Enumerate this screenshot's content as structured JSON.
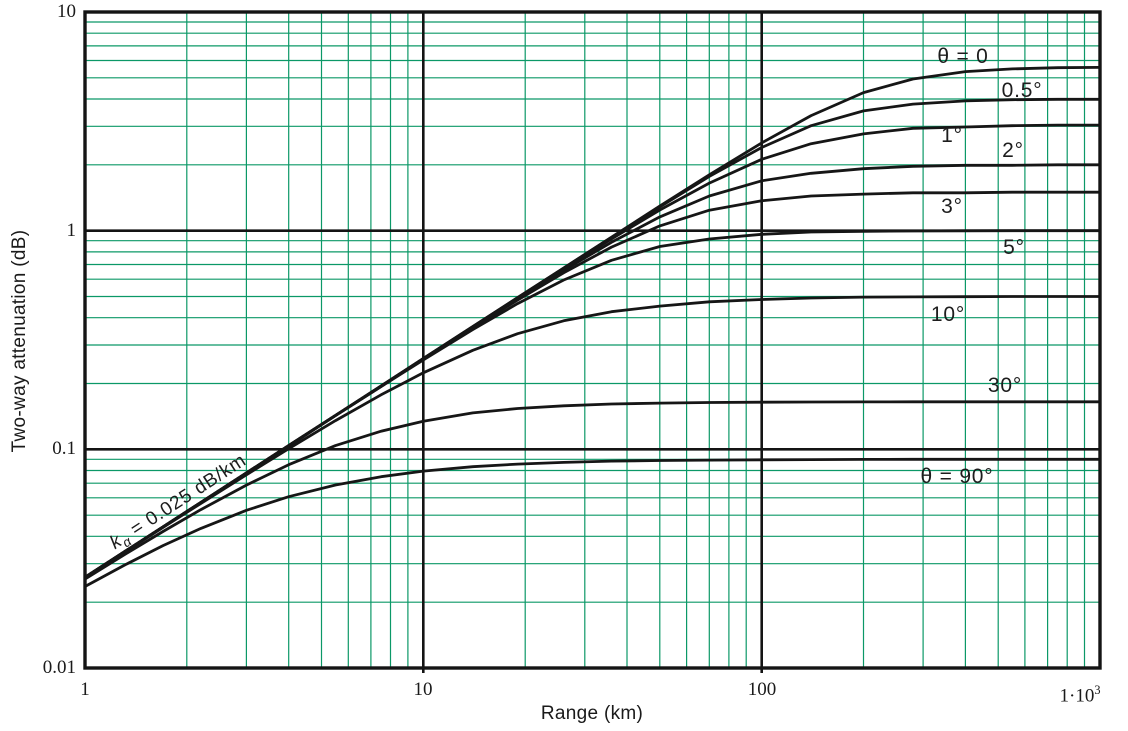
{
  "figure": {
    "bg_color": "#ffffff",
    "grid_minor_color": "#0b9867",
    "grid_major_color": "#141414",
    "frame_color": "#141414",
    "curve_color": "#161616"
  },
  "axes": {
    "x": {
      "title": "Range (km)",
      "scale": "log",
      "ticks": [
        {
          "value": 1,
          "text": "1",
          "sup": ""
        },
        {
          "value": 10,
          "text": "10",
          "sup": ""
        },
        {
          "value": 100,
          "text": "100",
          "sup": ""
        },
        {
          "value": 1000,
          "text": "1·10",
          "sup": "3"
        }
      ]
    },
    "y": {
      "title": "Two-way attenuation (dB)",
      "scale": "log",
      "ticks": [
        {
          "value": 10,
          "text": "10",
          "sup": ""
        },
        {
          "value": 1,
          "text": "1",
          "sup": ""
        },
        {
          "value": 0.1,
          "text": "0.1",
          "sup": ""
        },
        {
          "value": 0.01,
          "text": "0.01",
          "sup": ""
        }
      ]
    }
  },
  "annotation": {
    "k_var": "k",
    "k_sub": "α",
    "k_rest": " = 0.025 dB/km",
    "at": [
      1.9,
      0.057
    ],
    "angle_deg": -33
  },
  "chart_data": {
    "type": "line",
    "title": "",
    "xlabel": "Range (km)",
    "ylabel": "Two-way attenuation (dB)",
    "xscale": "log",
    "yscale": "log",
    "xlim": [
      1,
      1000
    ],
    "ylim": [
      0.01,
      10
    ],
    "grid": "log-log grid: green minor lines at 2-9 per decade, black lines at decades",
    "legend": "curve labels drawn inline at right side of plot",
    "x": [
      1,
      1.3,
      1.7,
      2.2,
      3,
      4,
      5.5,
      7.5,
      10,
      14,
      19,
      26,
      36,
      50,
      70,
      100,
      140,
      200,
      280,
      400,
      550,
      750,
      1000
    ],
    "series": [
      {
        "name": "theta-0",
        "label": "θ = 0",
        "elevation_deg": 0,
        "saturation_dB": 5.6,
        "label_at": [
          394,
          6.2
        ],
        "values": [
          0.026,
          0.0338,
          0.0442,
          0.0572,
          0.078,
          0.104,
          0.143,
          0.195,
          0.26,
          0.364,
          0.494,
          0.675,
          0.934,
          1.295,
          1.8,
          2.52,
          3.36,
          4.28,
          4.94,
          5.34,
          5.49,
          5.56,
          5.58
        ]
      },
      {
        "name": "theta-0-5",
        "label": "0.5°",
        "elevation_deg": 0.5,
        "saturation_dB": 4.0,
        "label_at": [
          590,
          4.35
        ],
        "values": [
          0.026,
          0.0338,
          0.0442,
          0.0572,
          0.078,
          0.104,
          0.143,
          0.195,
          0.26,
          0.364,
          0.493,
          0.675,
          0.932,
          1.285,
          1.77,
          2.4,
          3.02,
          3.53,
          3.79,
          3.92,
          3.97,
          3.99,
          3.99
        ]
      },
      {
        "name": "theta-1",
        "label": "1°",
        "elevation_deg": 1,
        "saturation_dB": 3.05,
        "label_at": [
          366,
          2.7
        ],
        "values": [
          0.026,
          0.0338,
          0.0442,
          0.0572,
          0.078,
          0.104,
          0.143,
          0.194,
          0.26,
          0.363,
          0.492,
          0.67,
          0.917,
          1.243,
          1.65,
          2.12,
          2.5,
          2.77,
          2.94,
          2.98,
          3.02,
          3.04,
          3.04
        ]
      },
      {
        "name": "theta-2",
        "label": "2°",
        "elevation_deg": 2,
        "saturation_dB": 2.0,
        "label_at": [
          553,
          2.32
        ],
        "values": [
          0.026,
          0.0338,
          0.0442,
          0.0571,
          0.0779,
          0.1037,
          0.1428,
          0.1944,
          0.2594,
          0.362,
          0.488,
          0.659,
          0.885,
          1.156,
          1.44,
          1.69,
          1.83,
          1.92,
          1.97,
          1.99,
          1.99,
          2.0,
          2.0
        ]
      },
      {
        "name": "theta-3",
        "label": "3°",
        "elevation_deg": 3,
        "saturation_dB": 1.5,
        "label_at": [
          364,
          1.28
        ],
        "values": [
          0.026,
          0.0337,
          0.0441,
          0.057,
          0.0778,
          0.1034,
          0.1428,
          0.1935,
          0.2587,
          0.36,
          0.482,
          0.642,
          0.841,
          1.052,
          1.24,
          1.37,
          1.44,
          1.47,
          1.49,
          1.49,
          1.5,
          1.5,
          1.5
        ]
      },
      {
        "name": "theta-5",
        "label": "5°",
        "elevation_deg": 5,
        "saturation_dB": 1.0,
        "label_at": [
          556,
          0.835
        ],
        "values": [
          0.026,
          0.0338,
          0.0442,
          0.0572,
          0.0779,
          0.1039,
          0.1426,
          0.1937,
          0.2565,
          0.353,
          0.464,
          0.595,
          0.732,
          0.846,
          0.916,
          0.962,
          0.986,
          0.993,
          0.997,
          0.999,
          1.0,
          1.0,
          1.0
        ]
      },
      {
        "name": "theta-10",
        "label": "10°",
        "elevation_deg": 10,
        "saturation_dB": 0.5,
        "label_at": [
          355,
          0.412
        ],
        "values": [
          0.0259,
          0.0337,
          0.0439,
          0.0566,
          0.0765,
          0.1007,
          0.1353,
          0.1776,
          0.2239,
          0.2838,
          0.338,
          0.387,
          0.426,
          0.452,
          0.473,
          0.4845,
          0.492,
          0.497,
          0.498,
          0.499,
          0.5,
          0.5,
          0.5
        ]
      },
      {
        "name": "theta-30",
        "label": "30°",
        "elevation_deg": 30,
        "saturation_dB": 0.165,
        "label_at": [
          524,
          0.195
        ],
        "values": [
          0.0255,
          0.0328,
          0.0421,
          0.053,
          0.0686,
          0.0851,
          0.104,
          0.1211,
          0.1343,
          0.1467,
          0.1537,
          0.1582,
          0.1611,
          0.1628,
          0.1638,
          0.1643,
          0.1646,
          0.1648,
          0.1649,
          0.165,
          0.165,
          0.165,
          0.165
        ]
      },
      {
        "name": "theta-90",
        "label": "θ = 90°",
        "elevation_deg": 90,
        "saturation_dB": 0.09,
        "label_at": [
          378,
          0.0748
        ],
        "values": [
          0.0236,
          0.0294,
          0.0363,
          0.0435,
          0.0526,
          0.0607,
          0.0687,
          0.075,
          0.0795,
          0.0833,
          0.0856,
          0.0871,
          0.0883,
          0.0889,
          0.0893,
          0.0896,
          0.0898,
          0.0899,
          0.09,
          0.09,
          0.09,
          0.09,
          0.09
        ]
      }
    ]
  }
}
